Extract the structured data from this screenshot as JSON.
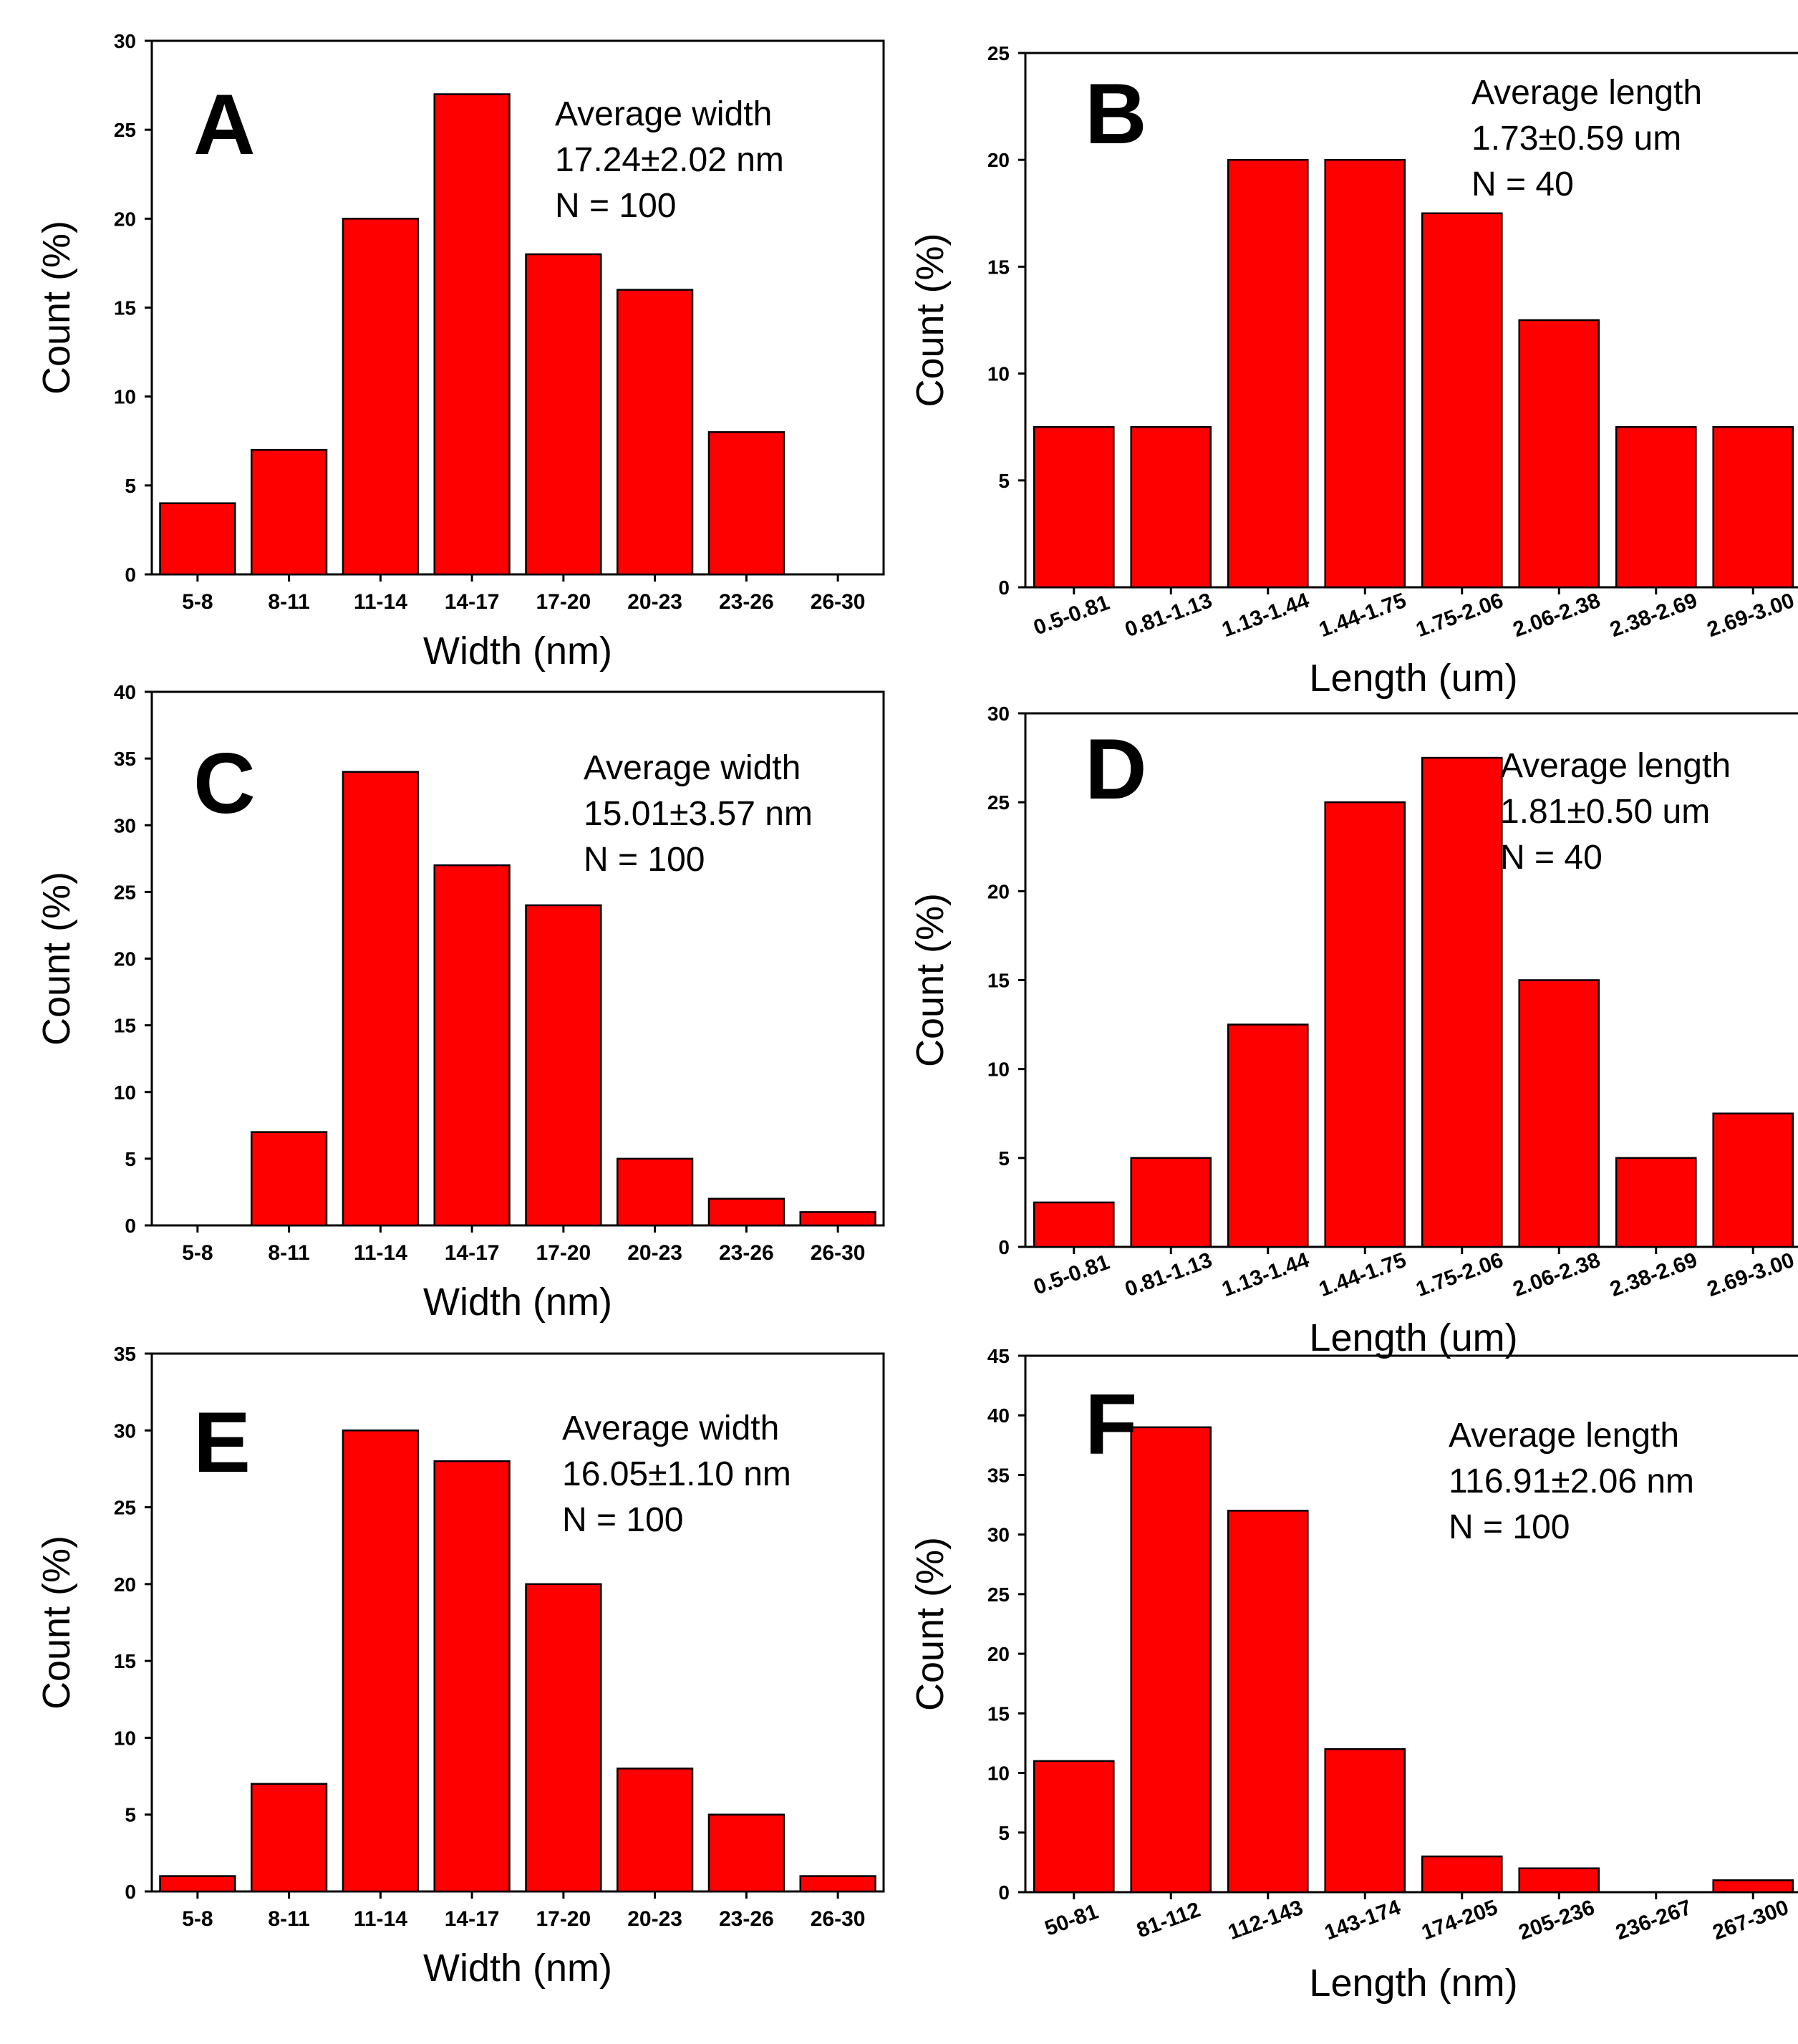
{
  "colors": {
    "bar": "#ff0000",
    "stroke": "#000000",
    "background": "#ffffff"
  },
  "chart_data": [
    {
      "type": "bar",
      "panel": "A",
      "categories": [
        "5-8",
        "8-11",
        "11-14",
        "14-17",
        "17-20",
        "20-23",
        "23-26",
        "26-30"
      ],
      "values": [
        4,
        7,
        20,
        27,
        18,
        16,
        8,
        0
      ],
      "xlabel": "Width (nm)",
      "ylabel": "Count (%)",
      "ylim": [
        0,
        30
      ],
      "yticks": [
        0,
        5,
        10,
        15,
        20,
        25,
        30
      ],
      "tick_rotation": 0,
      "annotation": [
        "Average width",
        "17.24±2.02 nm",
        "N = 100"
      ]
    },
    {
      "type": "bar",
      "panel": "B",
      "categories": [
        "0.5-0.81",
        "0.81-1.13",
        "1.13-1.44",
        "1.44-1.75",
        "1.75-2.06",
        "2.06-2.38",
        "2.38-2.69",
        "2.69-3.00"
      ],
      "values": [
        7.5,
        7.5,
        20,
        20,
        17.5,
        12.5,
        7.5,
        7.5
      ],
      "xlabel": "Length (um)",
      "ylabel": "Count (%)",
      "ylim": [
        0,
        25
      ],
      "yticks": [
        0,
        5,
        10,
        15,
        20,
        25
      ],
      "tick_rotation": -20,
      "annotation": [
        "Average length",
        "1.73±0.59 um",
        "N = 40"
      ]
    },
    {
      "type": "bar",
      "panel": "C",
      "categories": [
        "5-8",
        "8-11",
        "11-14",
        "14-17",
        "17-20",
        "20-23",
        "23-26",
        "26-30"
      ],
      "values": [
        0,
        7,
        34,
        27,
        24,
        5,
        2,
        1
      ],
      "xlabel": "Width (nm)",
      "ylabel": "Count (%)",
      "ylim": [
        0,
        40
      ],
      "yticks": [
        0,
        5,
        10,
        15,
        20,
        25,
        30,
        35,
        40
      ],
      "tick_rotation": 0,
      "annotation": [
        "Average width",
        "15.01±3.57 nm",
        "N = 100"
      ]
    },
    {
      "type": "bar",
      "panel": "D",
      "categories": [
        "0.5-0.81",
        "0.81-1.13",
        "1.13-1.44",
        "1.44-1.75",
        "1.75-2.06",
        "2.06-2.38",
        "2.38-2.69",
        "2.69-3.00"
      ],
      "values": [
        2.5,
        5,
        12.5,
        25,
        27.5,
        15,
        5,
        7.5
      ],
      "xlabel": "Length (um)",
      "ylabel": "Count (%)",
      "ylim": [
        0,
        30
      ],
      "yticks": [
        0,
        5,
        10,
        15,
        20,
        25,
        30
      ],
      "tick_rotation": -20,
      "annotation": [
        "Average length",
        "1.81±0.50 um",
        "N = 40"
      ]
    },
    {
      "type": "bar",
      "panel": "E",
      "categories": [
        "5-8",
        "8-11",
        "11-14",
        "14-17",
        "17-20",
        "20-23",
        "23-26",
        "26-30"
      ],
      "values": [
        1,
        7,
        30,
        28,
        20,
        8,
        5,
        1
      ],
      "xlabel": "Width (nm)",
      "ylabel": "Count (%)",
      "ylim": [
        0,
        35
      ],
      "yticks": [
        0,
        5,
        10,
        15,
        20,
        25,
        30,
        35
      ],
      "tick_rotation": 0,
      "annotation": [
        "Average width",
        "16.05±1.10 nm",
        "N = 100"
      ]
    },
    {
      "type": "bar",
      "panel": "F",
      "categories": [
        "50-81",
        "81-112",
        "112-143",
        "143-174",
        "174-205",
        "205-236",
        "236-267",
        "267-300"
      ],
      "values": [
        11,
        39,
        32,
        12,
        3,
        2,
        0,
        1
      ],
      "xlabel": "Length (nm)",
      "ylabel": "Count (%)",
      "ylim": [
        0,
        45
      ],
      "yticks": [
        0,
        5,
        10,
        15,
        20,
        25,
        30,
        35,
        40,
        45
      ],
      "tick_rotation": -20,
      "annotation": [
        "Average length",
        "116.91±2.06 nm",
        "N = 100"
      ]
    }
  ]
}
